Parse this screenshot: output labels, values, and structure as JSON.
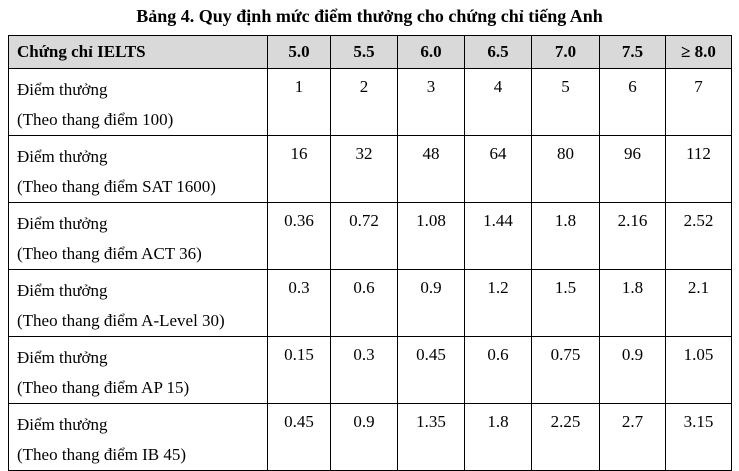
{
  "title": "Bảng 4. Quy định mức điểm thưởng cho chứng chỉ tiếng Anh",
  "table": {
    "header": [
      "Chứng chỉ IELTS",
      "5.0",
      "5.5",
      "6.0",
      "6.5",
      "7.0",
      "7.5",
      "≥ 8.0"
    ],
    "rows": [
      {
        "label": [
          "Điểm thưởng",
          "(Theo thang điểm 100)"
        ],
        "values": [
          "1",
          "2",
          "3",
          "4",
          "5",
          "6",
          "7"
        ]
      },
      {
        "label": [
          "Điểm thưởng",
          "(Theo thang điểm SAT 1600)"
        ],
        "values": [
          "16",
          "32",
          "48",
          "64",
          "80",
          "96",
          "112"
        ]
      },
      {
        "label": [
          "Điểm thưởng",
          "(Theo thang điểm ACT 36)"
        ],
        "values": [
          "0.36",
          "0.72",
          "1.08",
          "1.44",
          "1.8",
          "2.16",
          "2.52"
        ]
      },
      {
        "label": [
          "Điểm thưởng",
          "(Theo thang điểm A-Level 30)"
        ],
        "values": [
          "0.3",
          "0.6",
          "0.9",
          "1.2",
          "1.5",
          "1.8",
          "2.1"
        ]
      },
      {
        "label": [
          "Điểm thưởng",
          "(Theo thang điểm AP 15)"
        ],
        "values": [
          "0.15",
          "0.3",
          "0.45",
          "0.6",
          "0.75",
          "0.9",
          "1.05"
        ]
      },
      {
        "label": [
          "Điểm thưởng",
          "(Theo thang điểm IB 45)"
        ],
        "values": [
          "0.45",
          "0.9",
          "1.35",
          "1.8",
          "2.25",
          "2.7",
          "3.15"
        ]
      }
    ]
  }
}
